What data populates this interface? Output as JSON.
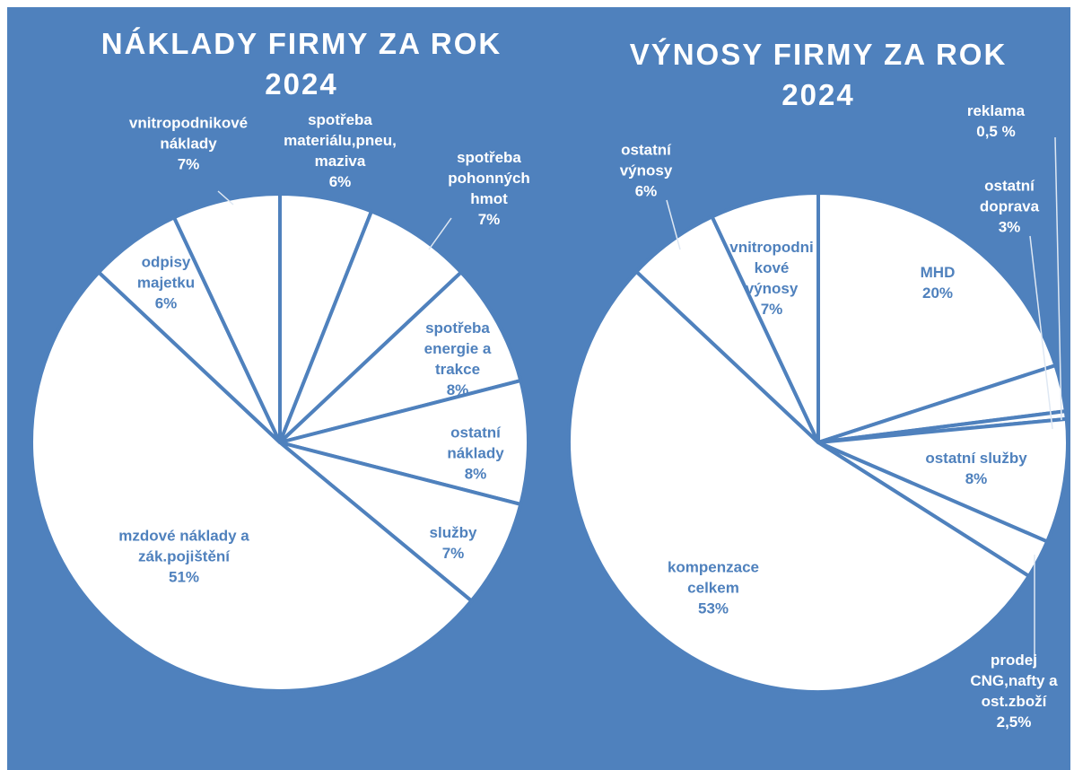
{
  "chart_data": [
    {
      "type": "pie",
      "title": "NÁKLADY FIRMY ZA ROK 2024",
      "color": "#ffffff",
      "categories": [
        "spotřeba materiálu,pneu, maziva",
        "spotřeba pohonných hmot",
        "spotřeba energie a trakce",
        "ostatní náklady",
        "služby",
        "mzdové náklady a zák.pojištění",
        "odpisy majetku",
        "vnitropodnikové náklady"
      ],
      "values": [
        6,
        7,
        8,
        8,
        7,
        51,
        6,
        7
      ],
      "value_labels": [
        "6%",
        "7%",
        "8%",
        "8%",
        "7%",
        "51%",
        "6%",
        "7%"
      ]
    },
    {
      "type": "pie",
      "title": "VÝNOSY FIRMY ZA ROK 2024",
      "color": "#ffffff",
      "categories": [
        "MHD",
        "ostatní doprava",
        "reklama",
        "ostatní služby",
        "prodej CNG,nafty a ost.zboží",
        "kompenzace celkem",
        "ostatní výnosy",
        "vnitropodnikové výnosy"
      ],
      "values": [
        20,
        3,
        0.5,
        8,
        2.5,
        53,
        6,
        7
      ],
      "value_labels": [
        "20%",
        "3%",
        "0,5 %",
        "8%",
        "2,5%",
        "53%",
        "6%",
        "7%"
      ]
    }
  ]
}
